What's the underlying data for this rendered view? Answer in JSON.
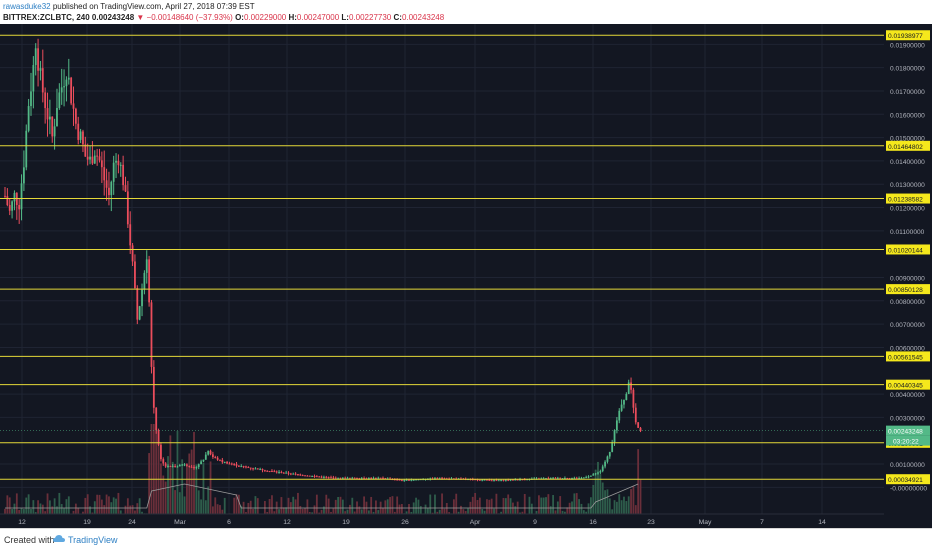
{
  "header": {
    "publisher": "rawasduke32",
    "published_text": "published on TradingView.com, April 27, 2018 07:39 EST",
    "symbol": "BITTREX:ZCLBTC, 240",
    "last": "0.00243248",
    "change": "▼ −0.00148640 (−37.93%)",
    "o_label": "O:",
    "o_value": "0.00229000",
    "h_label": "H:",
    "h_value": "0.00247000",
    "l_label": "L:",
    "l_value": "0.00227730",
    "c_label": "C:",
    "c_value": "0.00243248"
  },
  "footer": {
    "created_with": "Created with",
    "brand": "TradingView"
  },
  "colors": {
    "background": "#131722",
    "grid": "#1f2433",
    "up": "#53b987",
    "down": "#eb4d5c",
    "level_line": "#e4d838",
    "level_label_bg": "#f5e81c",
    "current_label_bg": "#53b987",
    "volume_up": "#2e5d4b",
    "volume_down": "#6a2f3a",
    "volume_ma": "#9a9a9a"
  },
  "chart_data": {
    "type": "candlestick",
    "title": "BITTREX:ZCLBTC, 240",
    "y_scale": "linear",
    "ylim": [
      -0.0005,
      0.0197
    ],
    "grid": true,
    "y_ticks": [
      "0.01900000",
      "0.01800000",
      "0.01700000",
      "0.01600000",
      "0.01500000",
      "0.01400000",
      "0.01300000",
      "0.01200000",
      "0.01100000",
      "0.00900000",
      "0.00800000",
      "0.00700000",
      "0.00600000",
      "0.00400000",
      "0.00300000",
      "0.00100000",
      "-0.00000000"
    ],
    "x_tick_labels": [
      "12",
      "19",
      "24",
      "Mar",
      "6",
      "12",
      "19",
      "26",
      "Apr",
      "9",
      "16",
      "23",
      "May",
      "7",
      "14"
    ],
    "horizontal_levels": [
      "0.01938977",
      "0.01464802",
      "0.01238582",
      "0.01020144",
      "0.00850128",
      "0.00561545",
      "0.00440345",
      "0.00190991",
      "0.00034921"
    ],
    "current_price": "0.00243248",
    "countdown": "03:20:22",
    "price_path": [
      [
        0.0,
        0.0125
      ],
      [
        0.5,
        0.0118
      ],
      [
        1.0,
        0.0125
      ],
      [
        1.5,
        0.0122
      ],
      [
        2.0,
        0.014
      ],
      [
        2.5,
        0.0165
      ],
      [
        3.0,
        0.018
      ],
      [
        3.3,
        0.0195
      ],
      [
        3.6,
        0.0178
      ],
      [
        4.0,
        0.017
      ],
      [
        4.5,
        0.016
      ],
      [
        5.0,
        0.015
      ],
      [
        5.5,
        0.0165
      ],
      [
        6.0,
        0.0172
      ],
      [
        6.5,
        0.018
      ],
      [
        7.0,
        0.0168
      ],
      [
        7.5,
        0.0156
      ],
      [
        8.0,
        0.015
      ],
      [
        8.5,
        0.0142
      ],
      [
        9.0,
        0.014
      ],
      [
        9.5,
        0.0145
      ],
      [
        10.0,
        0.014
      ],
      [
        10.5,
        0.0132
      ],
      [
        11.0,
        0.0125
      ],
      [
        11.5,
        0.0138
      ],
      [
        12.0,
        0.0142
      ],
      [
        12.5,
        0.0132
      ],
      [
        13.0,
        0.0115
      ],
      [
        13.5,
        0.0095
      ],
      [
        14.0,
        0.0072
      ],
      [
        14.5,
        0.0085
      ],
      [
        15.0,
        0.01
      ],
      [
        15.3,
        0.0075
      ],
      [
        15.6,
        0.004
      ],
      [
        16.0,
        0.0025
      ],
      [
        16.5,
        0.0012
      ],
      [
        17.0,
        0.0009
      ],
      [
        18.0,
        0.0009
      ],
      [
        19.0,
        0.001
      ],
      [
        20.0,
        0.0008
      ],
      [
        21.0,
        0.0012
      ],
      [
        21.5,
        0.0016
      ],
      [
        22.0,
        0.0013
      ],
      [
        23.0,
        0.0011
      ],
      [
        25.0,
        0.0009
      ],
      [
        28.0,
        0.0007
      ],
      [
        32.0,
        0.0005
      ],
      [
        35.0,
        0.0004
      ],
      [
        40.0,
        0.0004
      ],
      [
        42.0,
        0.0003
      ],
      [
        46.0,
        0.0004
      ],
      [
        52.0,
        0.0003
      ],
      [
        58.0,
        0.0004
      ],
      [
        61.0,
        0.0004
      ],
      [
        62.0,
        0.0005
      ],
      [
        63.0,
        0.0007
      ],
      [
        64.0,
        0.0015
      ],
      [
        64.5,
        0.0025
      ],
      [
        65.0,
        0.0032
      ],
      [
        65.5,
        0.0038
      ],
      [
        66.0,
        0.0044
      ],
      [
        66.3,
        0.0042
      ],
      [
        66.6,
        0.003
      ],
      [
        67.0,
        0.0026
      ],
      [
        67.3,
        0.0024
      ]
    ]
  }
}
